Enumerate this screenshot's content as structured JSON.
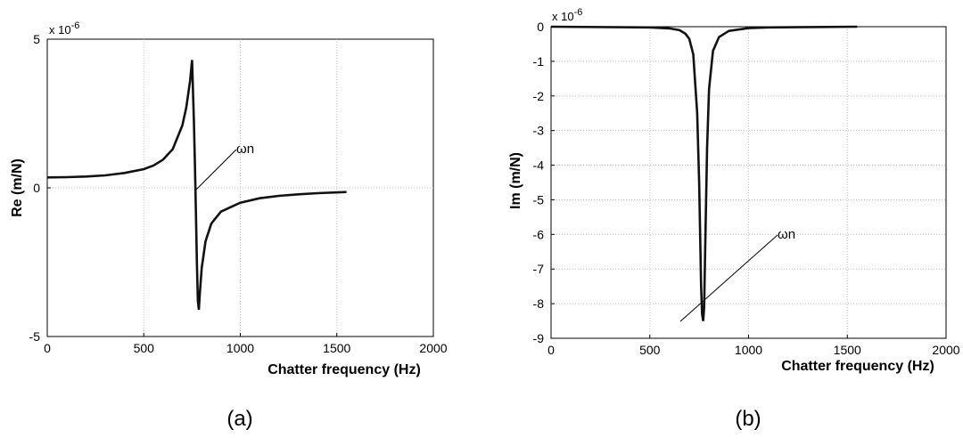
{
  "chart_data": [
    {
      "type": "line",
      "xlabel": "Chatter frequency (Hz)",
      "ylabel": "Re (m/N)",
      "scale_label": "x 10",
      "scale_exponent": "-6",
      "caption": "(a)",
      "xlim": [
        0,
        2000
      ],
      "ylim": [
        -5,
        5
      ],
      "x_ticks": [
        "0",
        "500",
        "1000",
        "1500",
        "2000"
      ],
      "y_ticks": [
        "5",
        "0",
        "-5"
      ],
      "x_tick_values": [
        0,
        500,
        1000,
        1500,
        2000
      ],
      "y_tick_values": [
        5,
        0,
        -5
      ],
      "grid": true,
      "annotation": {
        "text": "ωn",
        "x": 780,
        "y": 0
      },
      "series": [
        {
          "x": [
            0,
            100,
            200,
            300,
            400,
            500,
            550,
            600,
            650,
            700,
            720,
            740,
            750,
            760,
            765,
            770,
            775,
            780,
            785,
            790,
            800,
            820,
            850,
            900,
            1000,
            1100,
            1200,
            1300,
            1400,
            1550
          ],
          "y": [
            0.35,
            0.36,
            0.38,
            0.42,
            0.5,
            0.63,
            0.75,
            0.95,
            1.3,
            2.1,
            2.7,
            3.6,
            4.3,
            2.2,
            0.8,
            -0.8,
            -2.5,
            -3.8,
            -4.1,
            -3.6,
            -2.7,
            -1.8,
            -1.2,
            -0.8,
            -0.5,
            -0.35,
            -0.27,
            -0.22,
            -0.18,
            -0.14
          ]
        }
      ]
    },
    {
      "type": "line",
      "xlabel": "Chatter frequency (Hz)",
      "ylabel": "Im (m/N)",
      "scale_label": "x 10",
      "scale_exponent": "-6",
      "caption": "(b)",
      "xlim": [
        0,
        2000
      ],
      "ylim": [
        -9,
        0
      ],
      "x_ticks": [
        "0",
        "500",
        "1000",
        "1500",
        "2000"
      ],
      "y_ticks": [
        "0",
        "-1",
        "-2",
        "-3",
        "-4",
        "-5",
        "-6",
        "-7",
        "-8",
        "-9"
      ],
      "x_tick_values": [
        0,
        500,
        1000,
        1500,
        2000
      ],
      "y_tick_values": [
        0,
        -1,
        -2,
        -3,
        -4,
        -5,
        -6,
        -7,
        -8,
        -9
      ],
      "grid": true,
      "annotation": {
        "text": "ωn",
        "x": 770,
        "y": -8.5
      },
      "series": [
        {
          "x": [
            0,
            500,
            600,
            650,
            680,
            700,
            720,
            740,
            750,
            760,
            765,
            770,
            775,
            780,
            790,
            800,
            820,
            850,
            900,
            1000,
            1100,
            1300,
            1550
          ],
          "y": [
            0,
            -0.02,
            -0.05,
            -0.1,
            -0.2,
            -0.35,
            -0.8,
            -2.5,
            -4.5,
            -7.5,
            -8.3,
            -8.5,
            -8.1,
            -6.5,
            -3.5,
            -1.8,
            -0.7,
            -0.3,
            -0.12,
            -0.04,
            -0.02,
            -0.01,
            0
          ]
        }
      ]
    }
  ]
}
